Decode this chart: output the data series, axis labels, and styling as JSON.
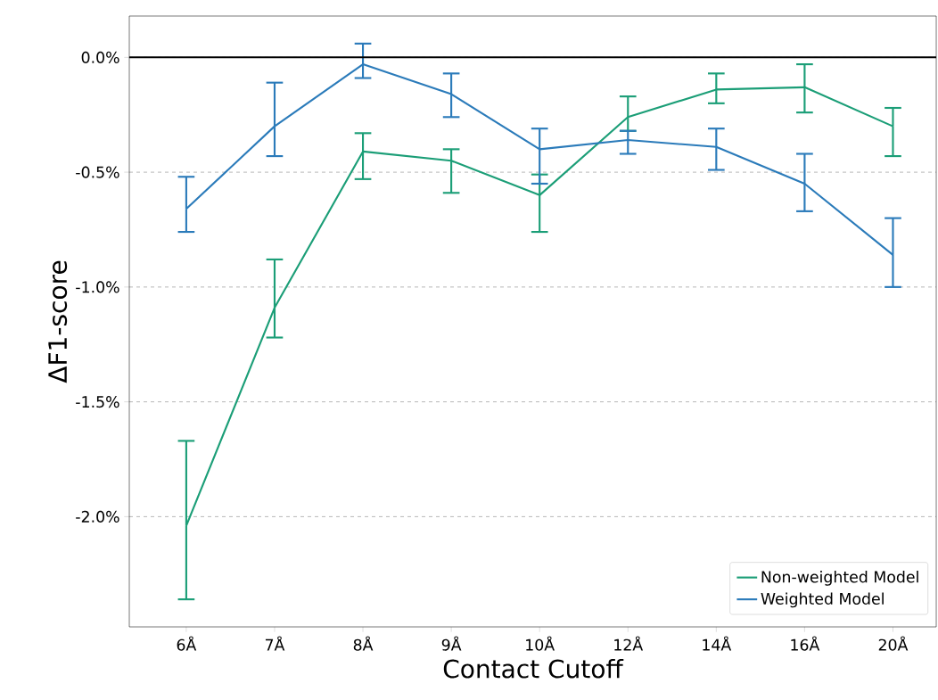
{
  "chart_data": {
    "type": "line",
    "xlabel": "Contact Cutoff",
    "ylabel": "ΔF1-score",
    "categories": [
      "6Å",
      "7Å",
      "8Å",
      "9Å",
      "10Å",
      "12Å",
      "14Å",
      "16Å",
      "20Å"
    ],
    "series": [
      {
        "name": "Non-weighted Model",
        "color": "#1b9e77",
        "values": [
          -2.04,
          -1.09,
          -0.41,
          -0.45,
          -0.6,
          -0.26,
          -0.14,
          -0.13,
          -0.3
        ],
        "errors": [
          [
            -2.36,
            -1.67
          ],
          [
            -1.22,
            -0.88
          ],
          [
            -0.53,
            -0.33
          ],
          [
            -0.59,
            -0.4
          ],
          [
            -0.76,
            -0.51
          ],
          [
            -0.32,
            -0.17
          ],
          [
            -0.2,
            -0.07
          ],
          [
            -0.24,
            -0.03
          ],
          [
            -0.43,
            -0.22
          ]
        ]
      },
      {
        "name": "Weighted Model",
        "color": "#2b7bba",
        "values": [
          -0.66,
          -0.3,
          -0.03,
          -0.16,
          -0.4,
          -0.36,
          -0.39,
          -0.55,
          -0.86
        ],
        "errors": [
          [
            -0.76,
            -0.52
          ],
          [
            -0.43,
            -0.11
          ],
          [
            -0.09,
            0.06
          ],
          [
            -0.26,
            -0.07
          ],
          [
            -0.55,
            -0.31
          ],
          [
            -0.42,
            -0.32
          ],
          [
            -0.49,
            -0.31
          ],
          [
            -0.67,
            -0.42
          ],
          [
            -1.0,
            -0.7
          ]
        ]
      }
    ],
    "ylim": [
      -2.48,
      0.18
    ],
    "yticks": [
      {
        "value": 0,
        "label": "0.0%"
      },
      {
        "value": -0.5,
        "label": "-0.5%"
      },
      {
        "value": -1.0,
        "label": "-1.0%"
      },
      {
        "value": -1.5,
        "label": "-1.5%"
      },
      {
        "value": -2.0,
        "label": "-2.0%"
      }
    ],
    "ref_lines": [
      {
        "axis": "y",
        "value": 0,
        "color": "#000000",
        "line_style": "solid"
      }
    ],
    "grid": "y",
    "legend": "bottom right",
    "marker": "none",
    "line_style": "solid"
  }
}
